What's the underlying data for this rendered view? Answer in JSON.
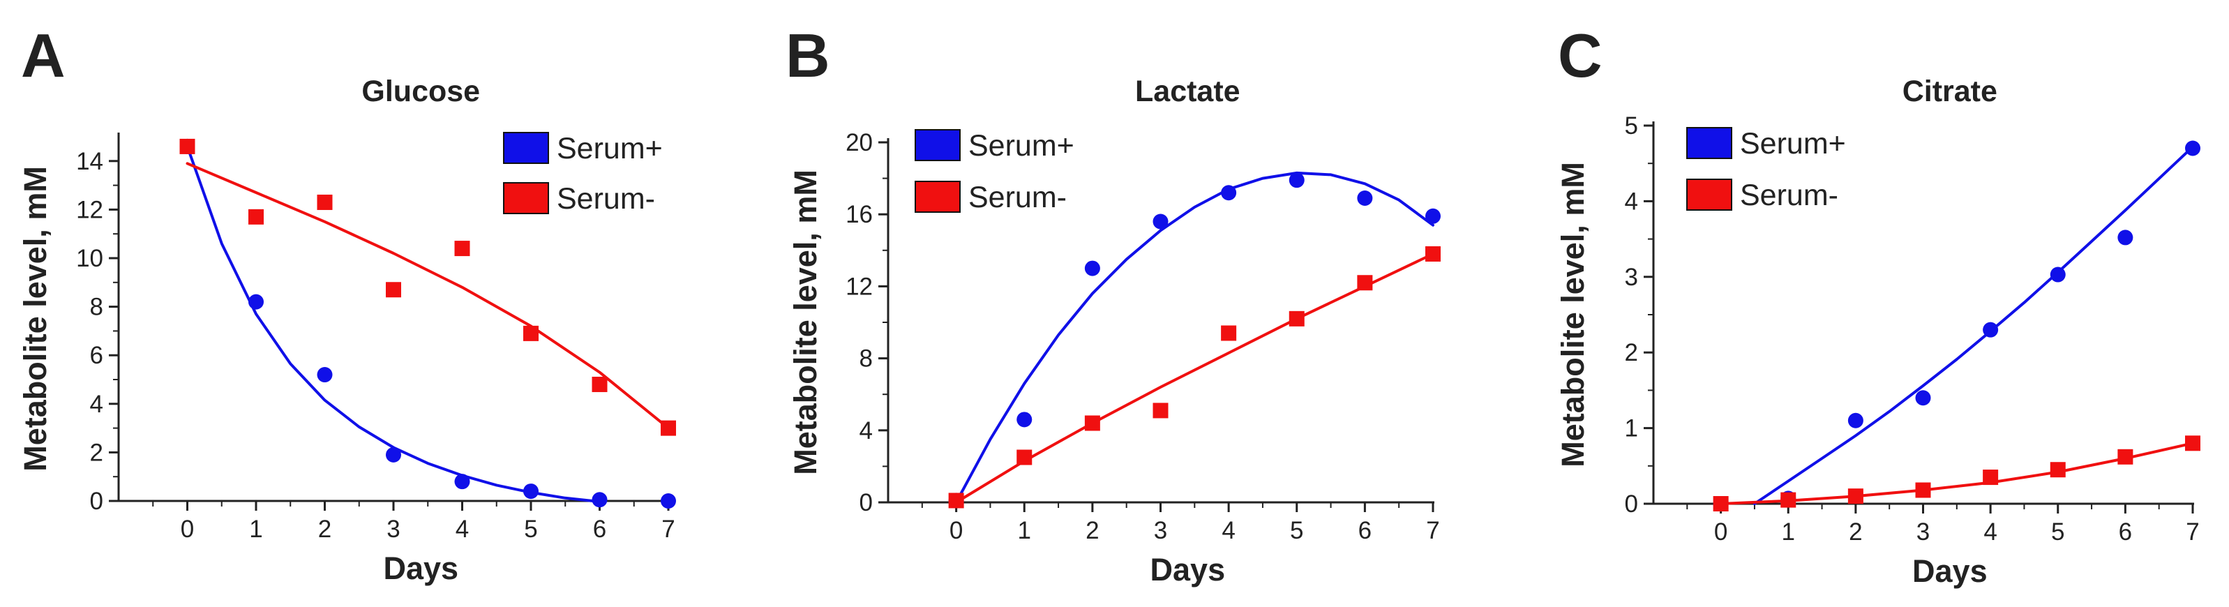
{
  "colors": {
    "serum_plus": "#1010e8",
    "serum_minus": "#f01010",
    "axis": "#222222",
    "text": "#222222"
  },
  "chart_data": [
    {
      "panel": "A",
      "type": "scatter",
      "title": "Glucose",
      "xlabel": "Days",
      "ylabel": "Metabolite level, mM",
      "xlim": [
        -1,
        7
      ],
      "ylim": [
        0,
        15
      ],
      "xticks": [
        0,
        1,
        2,
        3,
        4,
        5,
        6,
        7
      ],
      "yticks": [
        0,
        2,
        4,
        6,
        8,
        10,
        12,
        14
      ],
      "legend_position": "top-right",
      "series": [
        {
          "name": "Serum+",
          "marker": "circle",
          "x": [
            0,
            1,
            2,
            3,
            4,
            5,
            6,
            7
          ],
          "y": [
            14.6,
            8.2,
            5.2,
            1.9,
            0.8,
            0.4,
            0.05,
            0.0
          ],
          "fit_x": [
            0,
            0.5,
            1,
            1.5,
            2,
            2.5,
            3,
            3.5,
            4,
            4.5,
            5,
            5.5,
            5.9
          ],
          "fit_y": [
            14.6,
            10.6,
            7.7,
            5.65,
            4.15,
            3.05,
            2.2,
            1.55,
            1.05,
            0.65,
            0.35,
            0.12,
            0.0
          ]
        },
        {
          "name": "Serum-",
          "marker": "square",
          "x": [
            0,
            1,
            2,
            3,
            4,
            5,
            6,
            7
          ],
          "y": [
            14.6,
            11.7,
            12.3,
            8.7,
            10.4,
            6.9,
            4.8,
            3.0
          ],
          "fit_x": [
            0,
            1,
            2,
            3,
            4,
            5,
            6,
            7
          ],
          "fit_y": [
            13.9,
            12.7,
            11.5,
            10.2,
            8.8,
            7.2,
            5.3,
            3.0
          ]
        }
      ]
    },
    {
      "panel": "B",
      "type": "scatter",
      "title": "Lactate",
      "xlabel": "Days",
      "ylabel": "Metabolite level, mM",
      "xlim": [
        -1,
        7
      ],
      "ylim": [
        0,
        20
      ],
      "xticks": [
        0,
        1,
        2,
        3,
        4,
        5,
        6,
        7
      ],
      "yticks": [
        0,
        4,
        8,
        12,
        16,
        20
      ],
      "legend_position": "top-left",
      "series": [
        {
          "name": "Serum+",
          "marker": "circle",
          "x": [
            0,
            1,
            2,
            3,
            4,
            5,
            6,
            7
          ],
          "y": [
            0.1,
            4.6,
            13.0,
            15.6,
            17.2,
            17.9,
            16.9,
            15.9
          ],
          "fit_x": [
            0,
            0.5,
            1,
            1.5,
            2,
            2.5,
            3,
            3.5,
            4,
            4.5,
            5,
            5.5,
            6,
            6.5,
            7
          ],
          "fit_y": [
            0.0,
            3.5,
            6.6,
            9.3,
            11.6,
            13.5,
            15.1,
            16.4,
            17.4,
            18.0,
            18.3,
            18.2,
            17.7,
            16.8,
            15.4
          ]
        },
        {
          "name": "Serum-",
          "marker": "square",
          "x": [
            0,
            1,
            2,
            3,
            4,
            5,
            6,
            7
          ],
          "y": [
            0.1,
            2.5,
            4.4,
            5.1,
            9.4,
            10.2,
            12.2,
            13.8
          ],
          "fit_x": [
            0,
            1,
            2,
            3,
            4,
            5,
            6,
            7
          ],
          "fit_y": [
            0.0,
            2.3,
            4.4,
            6.4,
            8.3,
            10.2,
            12.0,
            13.8
          ]
        }
      ]
    },
    {
      "panel": "C",
      "type": "scatter",
      "title": "Citrate",
      "xlabel": "Days",
      "ylabel": "Metabolite level, mM",
      "xlim": [
        -1,
        7
      ],
      "ylim": [
        0,
        5
      ],
      "xticks": [
        0,
        1,
        2,
        3,
        4,
        5,
        6,
        7
      ],
      "yticks": [
        0,
        1,
        2,
        3,
        4,
        5
      ],
      "legend_position": "top-left",
      "series": [
        {
          "name": "Serum+",
          "marker": "circle",
          "x": [
            0,
            1,
            2,
            3,
            4,
            5,
            6,
            7
          ],
          "y": [
            0.0,
            0.07,
            1.1,
            1.4,
            2.3,
            3.03,
            3.52,
            4.7
          ],
          "fit_x": [
            0.5,
            1,
            1.5,
            2,
            2.5,
            3,
            3.5,
            4,
            4.5,
            5,
            5.5,
            6,
            6.5,
            7
          ],
          "fit_y": [
            0.0,
            0.3,
            0.6,
            0.9,
            1.22,
            1.56,
            1.91,
            2.28,
            2.66,
            3.06,
            3.47,
            3.88,
            4.3,
            4.72
          ]
        },
        {
          "name": "Serum-",
          "marker": "square",
          "x": [
            0,
            1,
            2,
            3,
            4,
            5,
            6,
            7
          ],
          "y": [
            0.0,
            0.05,
            0.1,
            0.18,
            0.35,
            0.45,
            0.62,
            0.8
          ],
          "fit_x": [
            0,
            1,
            2,
            3,
            4,
            5,
            6,
            7
          ],
          "fit_y": [
            0.0,
            0.04,
            0.1,
            0.18,
            0.28,
            0.42,
            0.6,
            0.8
          ]
        }
      ]
    }
  ]
}
